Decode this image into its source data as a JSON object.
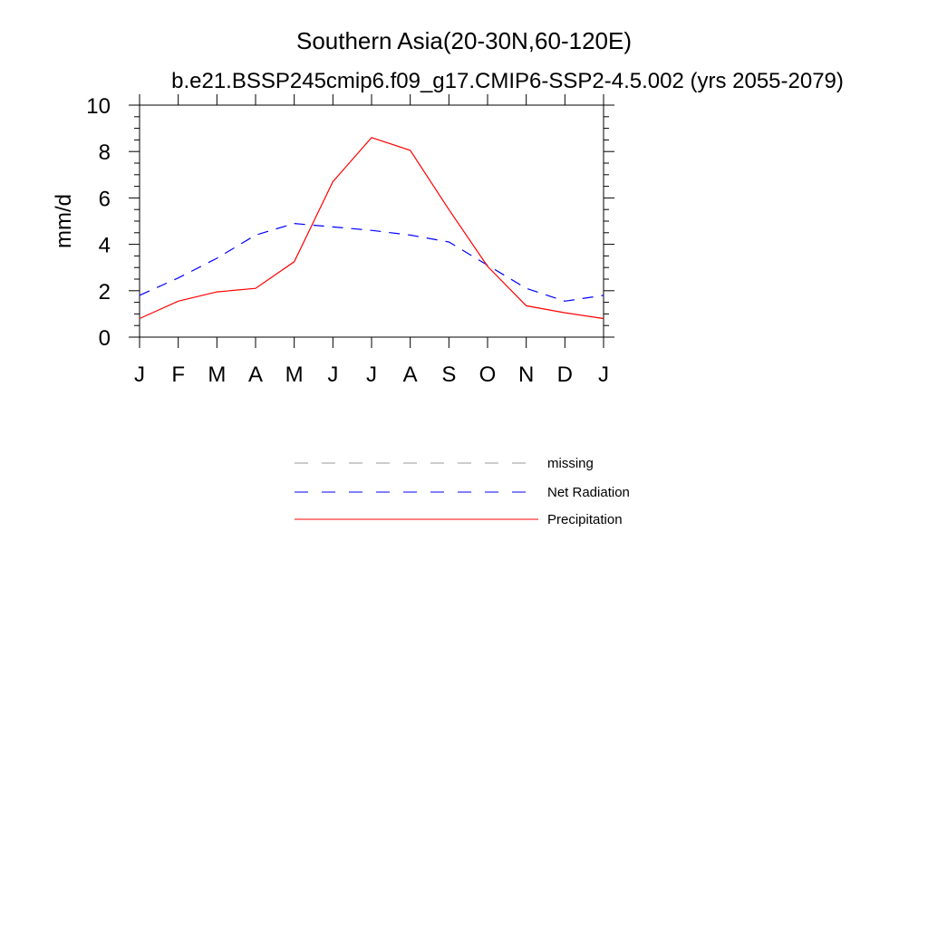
{
  "chart_data": {
    "type": "line",
    "title": "Southern Asia(20-30N,60-120E)",
    "subtitle": "b.e21.BSSP245cmip6.f09_g17.CMIP6-SSP2-4.5.002 (yrs 2055-2079)",
    "xlabel": "",
    "ylabel": "mm/d",
    "categories": [
      "J",
      "F",
      "M",
      "A",
      "M",
      "J",
      "J",
      "A",
      "S",
      "O",
      "N",
      "D",
      "J"
    ],
    "ylim": [
      0,
      10
    ],
    "yticks": [
      "0",
      "2",
      "4",
      "6",
      "8",
      "10"
    ],
    "grid": false,
    "legend_position": "bottom",
    "series": [
      {
        "name": "Net Radiation",
        "color": "#0000ff",
        "style": "dashed",
        "values": [
          1.8,
          2.55,
          3.4,
          4.4,
          4.9,
          4.75,
          4.6,
          4.4,
          4.1,
          3.1,
          2.1,
          1.55,
          1.8
        ]
      },
      {
        "name": "Precipitation",
        "color": "#ff0000",
        "style": "solid",
        "values": [
          0.8,
          1.55,
          1.95,
          2.1,
          3.25,
          6.7,
          8.6,
          8.05,
          5.5,
          3.05,
          1.35,
          1.05,
          0.8
        ]
      }
    ],
    "legend": [
      {
        "label": "missing",
        "color": "#999999",
        "style": "dashed"
      },
      {
        "label": "Net Radiation",
        "color": "#0000ff",
        "style": "dashed"
      },
      {
        "label": "Precipitation",
        "color": "#ff0000",
        "style": "solid"
      }
    ]
  }
}
